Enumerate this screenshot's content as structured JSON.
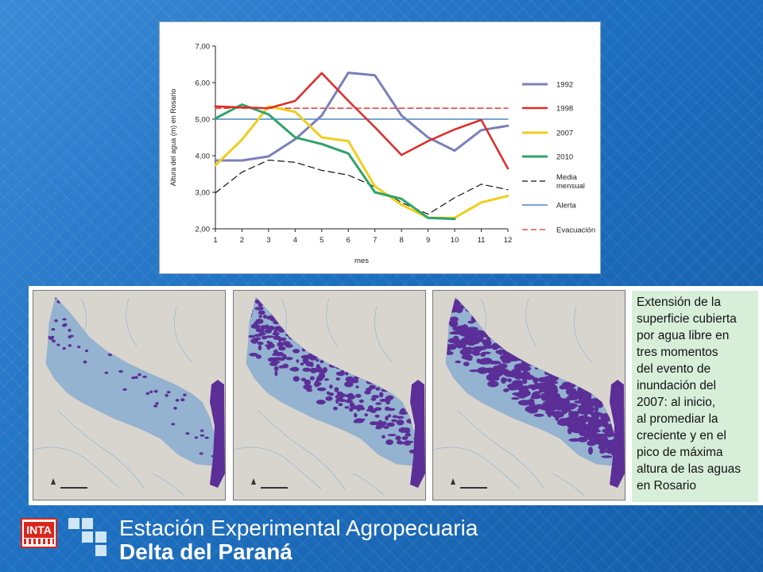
{
  "chart_data": {
    "type": "line",
    "xlabel": "mes",
    "ylabel": "Altura del agua (m) en Rosario",
    "x": [
      1,
      2,
      3,
      4,
      5,
      6,
      7,
      8,
      9,
      10,
      11,
      12
    ],
    "xticks": [
      "1",
      "2",
      "3",
      "4",
      "5",
      "6",
      "7",
      "8",
      "9",
      "10",
      "11",
      "12"
    ],
    "yticks": [
      "2,00",
      "3,00",
      "4,00",
      "5,00",
      "6,00",
      "7,00"
    ],
    "ylim": [
      2,
      7
    ],
    "xlim": [
      1,
      12
    ],
    "grid": false,
    "legend_position": "right",
    "series": [
      {
        "name": "1992",
        "color": "#7b7fb8",
        "dash": "solid",
        "width": 3,
        "values": [
          3.87,
          3.87,
          3.98,
          4.45,
          5.1,
          6.27,
          6.2,
          5.1,
          4.5,
          4.14,
          4.7,
          4.82
        ]
      },
      {
        "name": "1998",
        "color": "#e02a26",
        "dash": "solid",
        "width": 2.5,
        "values": [
          5.35,
          5.32,
          5.3,
          5.5,
          6.26,
          5.5,
          4.78,
          4.02,
          4.4,
          4.72,
          4.98,
          3.65
        ]
      },
      {
        "name": "2007",
        "color": "#f2cd1d",
        "dash": "solid",
        "width": 3,
        "values": [
          3.74,
          4.44,
          5.35,
          5.2,
          4.5,
          4.4,
          3.16,
          2.66,
          2.3,
          2.3,
          2.72,
          2.9
        ]
      },
      {
        "name": "2010",
        "color": "#2ea36a",
        "dash": "solid",
        "width": 3,
        "values": [
          5.02,
          5.4,
          5.13,
          4.5,
          4.32,
          4.06,
          3.0,
          2.82,
          2.3,
          2.27,
          null,
          null
        ]
      },
      {
        "name": "Media mensual",
        "color": "#111111",
        "dash": "dashed",
        "width": 1.2,
        "values": [
          2.98,
          3.55,
          3.88,
          3.82,
          3.6,
          3.47,
          3.15,
          2.72,
          2.4,
          2.85,
          3.22,
          3.07
        ]
      },
      {
        "name": "Alerta",
        "color": "#2b6fb6",
        "dash": "solid",
        "width": 1.3,
        "values": [
          5.0,
          5.0,
          5.0,
          5.0,
          5.0,
          5.0,
          5.0,
          5.0,
          5.0,
          5.0,
          5.0,
          5.0
        ]
      },
      {
        "name": "Evacuación",
        "color": "#e02a26",
        "dash": "dashed",
        "width": 1.3,
        "values": [
          5.3,
          5.3,
          5.3,
          5.3,
          5.3,
          5.3,
          5.3,
          5.3,
          5.3,
          5.3,
          5.3,
          5.3
        ]
      }
    ]
  },
  "maps": [
    {
      "flood_level": 0.12
    },
    {
      "flood_level": 0.55
    },
    {
      "flood_level": 0.9
    }
  ],
  "map_colors": {
    "land": "#d8d5cf",
    "delta": "#93b3d1",
    "flooded": "#5b2f97",
    "river": "#9bb8d0"
  },
  "caption": {
    "lines": [
      "Extensión de la",
      "superficie cubierta",
      "por agua libre en",
      "tres momentos",
      "del evento de",
      "inundación del",
      "2007: al inicio,",
      "al promediar la",
      "creciente y en el",
      "pico de máxima",
      "altura de las aguas",
      "en Rosario"
    ]
  },
  "footer": {
    "logo_text": "INTA",
    "title_line1": "Estación Experimental Agropecuaria",
    "title_line2": "Delta del Paraná"
  }
}
